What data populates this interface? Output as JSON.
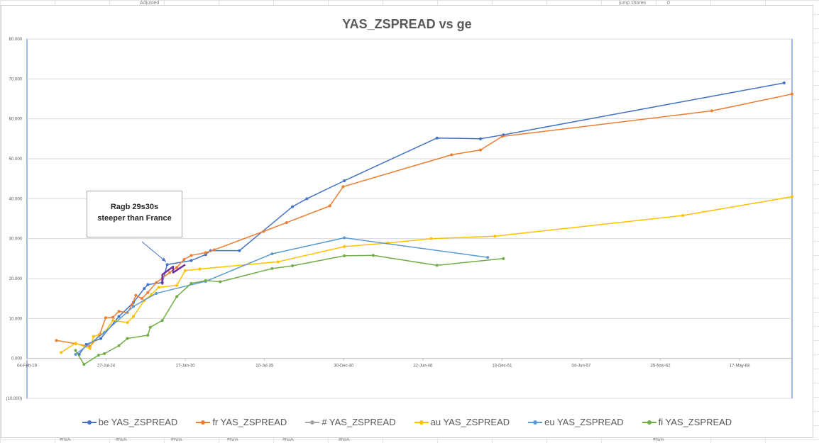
{
  "sheet": {
    "cell_fragments": [
      "Adjusted",
      "jump shares",
      "0",
      "#N/A",
      "#N/A",
      "#N/A",
      "#N/A",
      "#N/A",
      "#N/A",
      "#N/A"
    ]
  },
  "chart_data": {
    "type": "line",
    "title": "YAS_ZSPREAD vs ge",
    "xlabel": "",
    "ylabel": "",
    "ylim": [
      -10,
      80
    ],
    "y_ticks": [
      "(10.000)",
      "0.000",
      "10.000",
      "20.000",
      "30.000",
      "40.000",
      "50.000",
      "60.000",
      "70.000",
      "80.000"
    ],
    "x_axis_type": "date",
    "xlim": [
      "2019-02-04",
      "2072-01-01"
    ],
    "x_ticks": [
      {
        "date": "2019-02-04",
        "label": "04-Feb-19"
      },
      {
        "date": "2024-07-27",
        "label": "27-Jul-24"
      },
      {
        "date": "2030-01-17",
        "label": "17-Jan-30"
      },
      {
        "date": "2035-07-10",
        "label": "10-Jul-35"
      },
      {
        "date": "2040-12-30",
        "label": "30-Dec-40"
      },
      {
        "date": "2046-06-22",
        "label": "22-Jun-46"
      },
      {
        "date": "2051-12-13",
        "label": "13-Dec-51"
      },
      {
        "date": "2057-06-04",
        "label": "04-Jun-57"
      },
      {
        "date": "2062-11-25",
        "label": "25-Nov-62"
      },
      {
        "date": "2068-05-17",
        "label": "17-May-68"
      }
    ],
    "grid": true,
    "legend_position": "bottom",
    "series": [
      {
        "name": "be YAS_ZSPREAD",
        "color": "#4472c4",
        "points": [
          [
            "2022-09-15",
            1.0
          ],
          [
            "2023-03-15",
            3.5
          ],
          [
            "2024-03-15",
            5.0
          ],
          [
            "2025-06-15",
            10.5
          ],
          [
            "2026-06-15",
            14.0
          ],
          [
            "2027-03-15",
            17.5
          ],
          [
            "2027-06-15",
            18.5
          ],
          [
            "2028-06-15",
            19.0
          ],
          [
            "2028-10-15",
            23.5
          ],
          [
            "2030-06-15",
            24.5
          ],
          [
            "2031-06-15",
            26.0
          ],
          [
            "2031-10-15",
            27.0
          ],
          [
            "2033-10-15",
            27.0
          ],
          [
            "2037-06-15",
            38.0
          ],
          [
            "2038-06-15",
            40.0
          ],
          [
            "2041-01-15",
            44.5
          ],
          [
            "2047-06-15",
            55.2
          ],
          [
            "2050-06-15",
            55.0
          ],
          [
            "2052-01-15",
            56.0
          ],
          [
            "2071-06-15",
            69.0
          ]
        ]
      },
      {
        "name": "fr YAS_ZSPREAD",
        "color": "#ed7d31",
        "points": [
          [
            "2021-02-15",
            4.5
          ],
          [
            "2022-06-15",
            3.7
          ],
          [
            "2023-06-15",
            3.0
          ],
          [
            "2024-02-15",
            6.0
          ],
          [
            "2024-07-15",
            10.2
          ],
          [
            "2025-01-15",
            10.3
          ],
          [
            "2025-06-15",
            11.8
          ],
          [
            "2026-01-15",
            11.5
          ],
          [
            "2026-05-15",
            13.5
          ],
          [
            "2026-08-15",
            15.8
          ],
          [
            "2027-01-15",
            15.0
          ],
          [
            "2027-06-15",
            16.5
          ],
          [
            "2028-01-15",
            19.0
          ],
          [
            "2028-12-15",
            21.5
          ],
          [
            "2029-06-15",
            22.8
          ],
          [
            "2029-12-15",
            24.8
          ],
          [
            "2030-06-15",
            25.8
          ],
          [
            "2031-06-15",
            26.5
          ],
          [
            "2032-01-15",
            27.2
          ],
          [
            "2035-06-15",
            31.8
          ],
          [
            "2037-01-15",
            34.0
          ],
          [
            "2040-01-15",
            38.2
          ],
          [
            "2040-12-15",
            43.0
          ],
          [
            "2048-06-15",
            51.0
          ],
          [
            "2050-06-15",
            52.2
          ],
          [
            "2051-12-15",
            55.6
          ],
          [
            "2066-06-15",
            62.0
          ],
          [
            "2072-01-01",
            66.2
          ]
        ]
      },
      {
        "name": "# YAS_ZSPREAD",
        "color": "#a5a5a5",
        "points": []
      },
      {
        "name": "au YAS_ZSPREAD",
        "color": "#ffc000",
        "points": [
          [
            "2021-06-15",
            1.5
          ],
          [
            "2022-06-15",
            3.8
          ],
          [
            "2023-06-15",
            2.5
          ],
          [
            "2023-09-15",
            5.5
          ],
          [
            "2024-06-15",
            6.5
          ],
          [
            "2025-01-15",
            9.5
          ],
          [
            "2026-01-15",
            9.0
          ],
          [
            "2026-06-15",
            10.5
          ],
          [
            "2027-03-15",
            14.5
          ],
          [
            "2027-09-15",
            16.0
          ],
          [
            "2028-03-15",
            17.8
          ],
          [
            "2029-06-15",
            18.3
          ],
          [
            "2030-01-15",
            22.0
          ],
          [
            "2031-01-15",
            22.4
          ],
          [
            "2036-06-15",
            24.2
          ],
          [
            "2041-01-15",
            28.0
          ],
          [
            "2044-01-15",
            28.9
          ],
          [
            "2047-01-15",
            30.0
          ],
          [
            "2051-06-15",
            30.6
          ],
          [
            "2064-06-15",
            35.8
          ],
          [
            "2072-01-01",
            40.5
          ]
        ]
      },
      {
        "name": "eu YAS_ZSPREAD",
        "color": "#5b9bd5",
        "points": [
          [
            "2022-06-15",
            1.0
          ],
          [
            "2024-06-15",
            6.5
          ],
          [
            "2026-06-15",
            13.0
          ],
          [
            "2028-01-15",
            16.3
          ],
          [
            "2031-06-15",
            19.3
          ],
          [
            "2036-01-15",
            26.2
          ],
          [
            "2041-01-15",
            30.2
          ],
          [
            "2050-12-15",
            25.3
          ]
        ]
      },
      {
        "name": "fi YAS_ZSPREAD",
        "color": "#70ad47",
        "points": [
          [
            "2022-06-15",
            2.0
          ],
          [
            "2023-01-15",
            -1.5
          ],
          [
            "2024-01-15",
            0.8
          ],
          [
            "2024-06-15",
            1.2
          ],
          [
            "2025-06-15",
            3.2
          ],
          [
            "2026-01-15",
            5.0
          ],
          [
            "2027-06-15",
            5.8
          ],
          [
            "2027-08-15",
            7.8
          ],
          [
            "2028-06-15",
            9.5
          ],
          [
            "2029-06-15",
            15.5
          ],
          [
            "2030-06-15",
            18.8
          ],
          [
            "2031-06-15",
            19.5
          ],
          [
            "2032-06-15",
            19.2
          ],
          [
            "2036-01-15",
            22.5
          ],
          [
            "2037-06-15",
            23.2
          ],
          [
            "2041-01-15",
            25.7
          ],
          [
            "2043-01-15",
            25.8
          ],
          [
            "2047-06-15",
            23.3
          ],
          [
            "2052-01-15",
            25.0
          ]
        ]
      },
      {
        "name": "",
        "color": "#7030a0",
        "points": [
          [
            "2028-06-15",
            18.5
          ],
          [
            "2028-06-15",
            21.0
          ],
          [
            "2029-03-15",
            23.0
          ],
          [
            "2029-03-15",
            21.5
          ],
          [
            "2030-01-15",
            23.5
          ]
        ]
      }
    ],
    "annotation": {
      "text_lines": [
        "Ragb 29s30s",
        "steeper than France"
      ]
    }
  }
}
